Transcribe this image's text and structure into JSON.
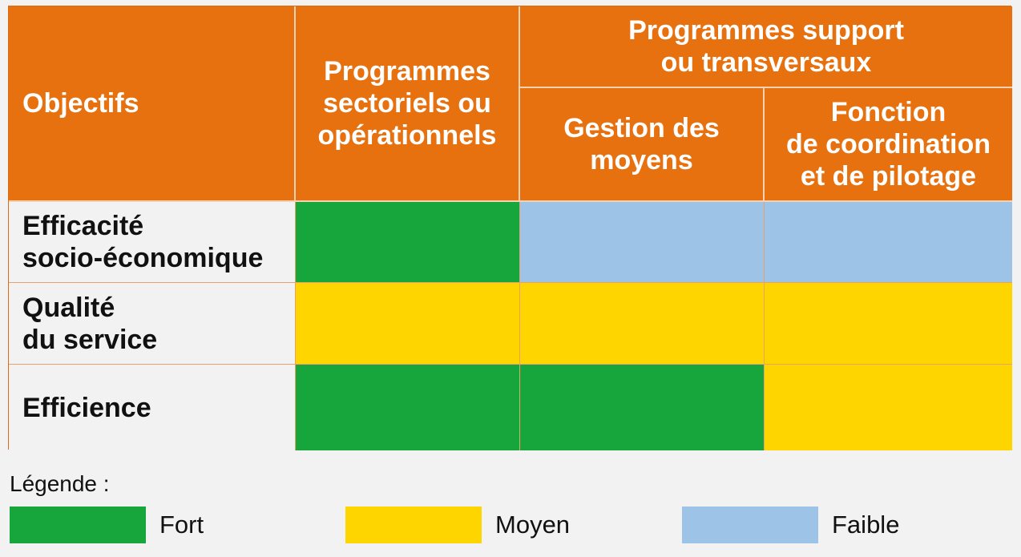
{
  "colors": {
    "header": "#e7700f",
    "fort": "#16a63b",
    "moyen": "#ffd500",
    "faible": "#9dc3e6"
  },
  "header": {
    "objectifs": "Objectifs",
    "sectoriels": "Programmes\nsectoriels ou\nopérationnels",
    "support": "Programmes support\nou transversaux",
    "gestion": "Gestion des\nmoyens",
    "coordination": "Fonction\nde coordination\net de pilotage"
  },
  "rows": [
    {
      "label": "Efficacité\nsocio-économique",
      "levels": [
        "fort",
        "faible",
        "faible"
      ]
    },
    {
      "label": "Qualité\ndu service",
      "levels": [
        "moyen",
        "moyen",
        "moyen"
      ]
    },
    {
      "label": "Efficience",
      "levels": [
        "fort",
        "fort",
        "moyen"
      ]
    }
  ],
  "legend": {
    "title": "Légende :",
    "items": [
      {
        "key": "fort",
        "label": "Fort"
      },
      {
        "key": "moyen",
        "label": "Moyen"
      },
      {
        "key": "faible",
        "label": "Faible"
      }
    ]
  }
}
